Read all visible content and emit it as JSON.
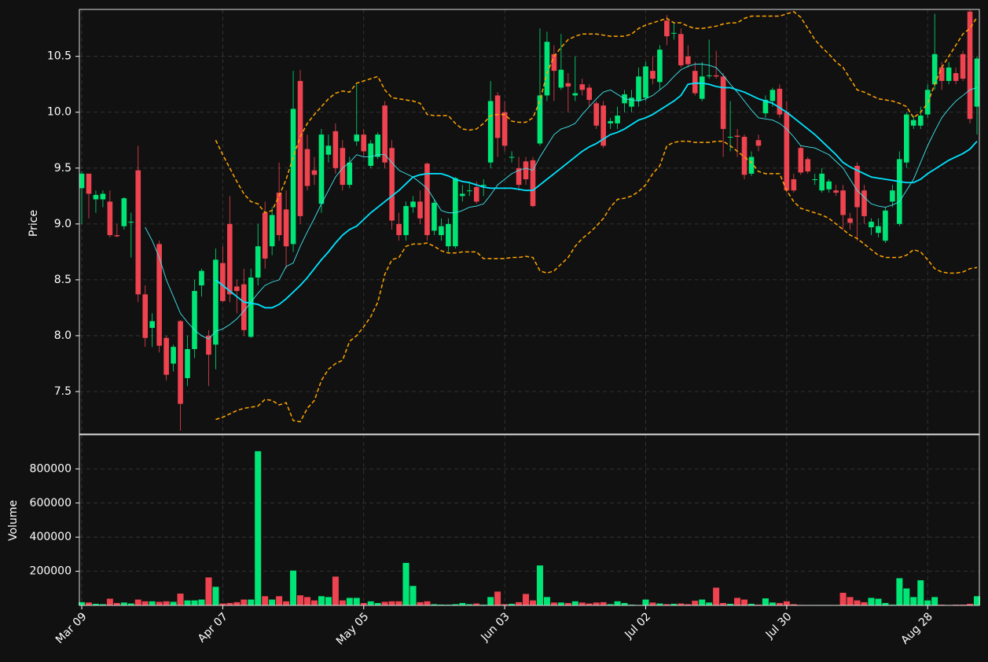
{
  "chart_data": {
    "type": "candlestick",
    "y_label": "Price",
    "volume_label": "Volume",
    "up_color": "#00e676",
    "down_color": "#ef4350",
    "grid": true,
    "ylim": [
      7.12,
      10.92
    ],
    "yticks": [
      7.5,
      {
        "value": 8,
        "label": "8.0"
      },
      8.5,
      {
        "value": 9,
        "label": "9.0"
      },
      9.5,
      {
        "value": 10,
        "label": "10.0"
      },
      10.5
    ],
    "volume_ylim": [
      0,
      1000000
    ],
    "volume_yticks": [
      200000,
      400000,
      600000,
      800000
    ],
    "categories": [
      "Mar 09",
      null,
      null,
      null,
      null,
      null,
      null,
      null,
      null,
      null,
      null,
      null,
      null,
      null,
      null,
      null,
      null,
      null,
      null,
      null,
      "Apr 07",
      null,
      null,
      null,
      null,
      null,
      null,
      null,
      null,
      null,
      null,
      null,
      null,
      null,
      null,
      null,
      null,
      null,
      null,
      null,
      "May 05",
      null,
      null,
      null,
      null,
      null,
      null,
      null,
      null,
      null,
      null,
      null,
      null,
      null,
      null,
      null,
      null,
      null,
      null,
      null,
      "Jun 03",
      null,
      null,
      null,
      null,
      null,
      null,
      null,
      null,
      null,
      null,
      null,
      null,
      null,
      null,
      null,
      null,
      null,
      null,
      null,
      "Jul 02",
      null,
      null,
      null,
      null,
      null,
      null,
      null,
      null,
      null,
      null,
      null,
      null,
      null,
      null,
      null,
      null,
      null,
      null,
      null,
      "Jul 30",
      null,
      null,
      null,
      null,
      null,
      null,
      null,
      null,
      null,
      null,
      null,
      null,
      null,
      null,
      null,
      null,
      null,
      null,
      null,
      "Aug 28",
      null,
      null,
      null,
      null,
      null,
      null,
      null
    ],
    "open": [
      9.32,
      9.45,
      9.22,
      9.22,
      9.2,
      8.9,
      8.98,
      9.02,
      9.48,
      8.37,
      8.07,
      8.82,
      7.98,
      7.75,
      8.13,
      7.62,
      7.88,
      8.45,
      8.0,
      7.92,
      8.65,
      9.0,
      8.44,
      8.46,
      7.99,
      8.52,
      9.1,
      8.8,
      9.28,
      9.13,
      8.82,
      10.28,
      9.67,
      9.48,
      9.18,
      9.62,
      9.83,
      9.68,
      9.35,
      9.74,
      9.8,
      9.52,
      9.6,
      10.06,
      9.68,
      9.0,
      8.9,
      9.15,
      9.2,
      9.54,
      8.94,
      8.9,
      8.8,
      8.8,
      9.25,
      9.3,
      9.33,
      9.34,
      9.55,
      10.15,
      10.0,
      9.6,
      9.5,
      9.56,
      9.57,
      9.72,
      10.15,
      10.52,
      10.22,
      10.26,
      10.15,
      10.25,
      10.22,
      10.08,
      10.06,
      9.9,
      9.9,
      10.08,
      10.05,
      10.1,
      10.13,
      10.37,
      10.27,
      10.82,
      10.71,
      10.7,
      10.5,
      10.37,
      10.12,
      10.33,
      10.33,
      10.32,
      9.78,
      9.79,
      9.78,
      9.45,
      9.75,
      9.99,
      10.1,
      10.21,
      10.0,
      9.4,
      9.68,
      9.58,
      9.4,
      9.3,
      9.31,
      9.3,
      9.3,
      9.05,
      9.52,
      9.3,
      8.97,
      8.92,
      8.85,
      9.2,
      9.0,
      9.55,
      9.88,
      9.88,
      9.98,
      10.25,
      10.4,
      10.28,
      10.35,
      10.52,
      10.9,
      10.05
    ],
    "high": [
      9.47,
      9.45,
      9.3,
      9.3,
      9.3,
      9.0,
      9.24,
      9.1,
      9.7,
      8.45,
      8.2,
      8.85,
      8.0,
      7.92,
      8.14,
      8.0,
      8.5,
      8.6,
      8.05,
      8.78,
      8.8,
      9.25,
      8.5,
      8.6,
      8.6,
      9.0,
      9.2,
      9.15,
      9.55,
      9.3,
      10.37,
      10.38,
      9.8,
      9.6,
      9.85,
      9.8,
      9.9,
      9.75,
      9.6,
      10.25,
      9.85,
      9.75,
      9.82,
      10.1,
      9.75,
      9.1,
      9.2,
      9.25,
      9.3,
      9.55,
      9.22,
      9.05,
      9.05,
      9.42,
      9.35,
      9.38,
      9.38,
      9.4,
      10.28,
      10.18,
      10.1,
      9.65,
      9.6,
      9.6,
      9.6,
      10.75,
      10.72,
      10.6,
      10.7,
      10.35,
      10.5,
      10.3,
      10.25,
      10.1,
      10.1,
      9.95,
      10.05,
      10.2,
      10.2,
      10.4,
      10.45,
      10.5,
      10.6,
      10.87,
      10.8,
      10.75,
      10.6,
      10.45,
      10.45,
      10.65,
      10.55,
      10.35,
      10.1,
      9.85,
      9.8,
      9.65,
      9.8,
      10.15,
      10.22,
      10.25,
      10.1,
      9.45,
      9.7,
      9.6,
      9.45,
      9.5,
      9.4,
      9.35,
      9.35,
      9.1,
      9.55,
      9.35,
      9.05,
      9.05,
      9.15,
      9.35,
      9.65,
      10.0,
      9.97,
      10.05,
      10.25,
      10.88,
      10.45,
      10.45,
      10.4,
      10.55,
      10.92,
      10.5
    ],
    "low": [
      9.0,
      9.05,
      9.1,
      9.15,
      8.88,
      8.88,
      8.95,
      8.7,
      8.3,
      7.9,
      7.9,
      7.85,
      7.6,
      7.68,
      7.15,
      7.55,
      7.8,
      8.35,
      7.55,
      7.7,
      8.3,
      8.3,
      8.2,
      8.0,
      7.98,
      8.45,
      8.6,
      8.72,
      8.85,
      8.6,
      8.75,
      9.0,
      9.3,
      9.35,
      9.1,
      9.55,
      9.45,
      9.3,
      9.32,
      9.7,
      9.6,
      9.5,
      9.58,
      9.5,
      8.95,
      8.85,
      8.85,
      9.1,
      9.0,
      8.85,
      8.9,
      8.85,
      8.75,
      8.78,
      9.2,
      9.25,
      9.18,
      9.25,
      9.5,
      9.6,
      9.65,
      9.55,
      9.3,
      9.35,
      9.15,
      9.7,
      10.1,
      10.1,
      10.2,
      10.0,
      10.1,
      10.15,
      10.05,
      9.85,
      9.68,
      9.85,
      9.85,
      10.0,
      10.0,
      10.05,
      10.1,
      10.25,
      10.2,
      10.6,
      10.65,
      10.4,
      10.4,
      10.15,
      10.1,
      10.3,
      10.3,
      9.6,
      9.65,
      9.6,
      9.4,
      9.43,
      9.65,
      9.95,
      10.05,
      9.95,
      9.28,
      9.28,
      9.44,
      9.45,
      9.35,
      9.28,
      9.28,
      9.25,
      8.95,
      8.95,
      8.85,
      9.0,
      8.9,
      8.88,
      8.83,
      9.15,
      8.98,
      9.5,
      9.85,
      9.85,
      9.95,
      10.2,
      10.2,
      10.25,
      10.25,
      10.28,
      9.9,
      9.8
    ],
    "close": [
      9.45,
      9.27,
      9.26,
      9.27,
      8.9,
      8.89,
      9.23,
      9.02,
      8.37,
      7.98,
      8.13,
      7.91,
      7.65,
      7.9,
      7.39,
      7.88,
      8.4,
      8.58,
      7.83,
      8.68,
      8.31,
      8.37,
      8.4,
      8.05,
      8.52,
      8.8,
      8.69,
      9.08,
      8.9,
      8.8,
      10.03,
      9.07,
      9.34,
      9.44,
      9.8,
      9.7,
      9.5,
      9.35,
      9.55,
      9.8,
      9.65,
      9.72,
      9.8,
      9.55,
      9.03,
      8.9,
      9.16,
      9.2,
      9.05,
      8.9,
      9.19,
      8.98,
      9.0,
      9.41,
      9.27,
      9.3,
      9.2,
      9.35,
      10.1,
      9.77,
      9.7,
      9.6,
      9.35,
      9.4,
      9.16,
      10.15,
      10.63,
      10.37,
      10.38,
      10.23,
      10.17,
      10.2,
      10.11,
      9.88,
      9.7,
      9.92,
      9.97,
      10.16,
      10.13,
      10.32,
      10.41,
      10.3,
      10.56,
      10.68,
      10.71,
      10.42,
      10.43,
      10.17,
      10.32,
      10.33,
      10.32,
      9.85,
      9.78,
      9.78,
      9.44,
      9.6,
      9.7,
      10.11,
      10.2,
      9.98,
      9.3,
      9.3,
      9.46,
      9.47,
      9.4,
      9.45,
      9.38,
      9.28,
      9.08,
      9.01,
      9.15,
      9.07,
      9.02,
      8.98,
      9.12,
      9.3,
      9.58,
      9.98,
      9.93,
      9.97,
      10.2,
      10.52,
      10.28,
      10.4,
      10.28,
      10.3,
      9.94,
      10.48
    ],
    "volume": [
      20000,
      18000,
      10000,
      8000,
      40000,
      15000,
      18000,
      12000,
      35000,
      25000,
      25000,
      22000,
      25000,
      22000,
      70000,
      30000,
      30000,
      35000,
      165000,
      110000,
      12000,
      15000,
      20000,
      35000,
      35000,
      905000,
      55000,
      35000,
      55000,
      25000,
      205000,
      60000,
      50000,
      30000,
      55000,
      50000,
      170000,
      30000,
      45000,
      45000,
      15000,
      25000,
      15000,
      22000,
      25000,
      25000,
      250000,
      115000,
      20000,
      25000,
      8000,
      6000,
      5000,
      8000,
      15000,
      8000,
      12000,
      5000,
      50000,
      82000,
      8000,
      10000,
      20000,
      68000,
      30000,
      235000,
      50000,
      18000,
      18000,
      15000,
      25000,
      18000,
      12000,
      18000,
      20000,
      8000,
      25000,
      15000,
      5000,
      3000,
      35000,
      18000,
      12000,
      8000,
      10000,
      12000,
      8000,
      28000,
      35000,
      18000,
      105000,
      15000,
      10000,
      45000,
      35000,
      10000,
      5000,
      42000,
      18000,
      15000,
      25000,
      8000,
      4000,
      3000,
      3000,
      3000,
      3000,
      3000,
      75000,
      50000,
      30000,
      20000,
      45000,
      40000,
      15000,
      5000,
      160000,
      100000,
      50000,
      148000,
      30000,
      50000,
      5000,
      3000,
      5000,
      5000,
      10000,
      55000
    ],
    "overlays": [
      {
        "color": "#ffa500",
        "width": 1.5,
        "dash": true,
        "values": [
          null,
          null,
          null,
          null,
          null,
          null,
          null,
          null,
          null,
          null,
          null,
          null,
          null,
          null,
          null,
          null,
          null,
          null,
          null,
          9.75,
          9.62,
          9.5,
          9.38,
          9.27,
          9.2,
          9.18,
          9.1,
          9.12,
          9.25,
          9.4,
          9.6,
          9.78,
          9.9,
          9.98,
          10.05,
          10.12,
          10.17,
          10.19,
          10.18,
          10.26,
          10.28,
          10.3,
          10.32,
          10.2,
          10.13,
          10.12,
          10.11,
          10.1,
          10.08,
          9.98,
          9.97,
          9.97,
          9.97,
          9.9,
          9.85,
          9.84,
          9.85,
          9.9,
          9.97,
          9.98,
          9.98,
          9.92,
          9.91,
          9.91,
          9.95,
          10.1,
          10.35,
          10.5,
          10.58,
          10.65,
          10.68,
          10.7,
          10.7,
          10.7,
          10.69,
          10.68,
          10.68,
          10.68,
          10.7,
          10.75,
          10.78,
          10.8,
          10.82,
          10.84,
          10.8,
          10.8,
          10.77,
          10.75,
          10.75,
          10.76,
          10.77,
          10.79,
          10.8,
          10.8,
          10.84,
          10.86,
          10.86,
          10.86,
          10.86,
          10.86,
          10.88,
          10.9,
          10.85,
          10.75,
          10.65,
          10.58,
          10.52,
          10.45,
          10.4,
          10.3,
          10.2,
          10.18,
          10.15,
          10.12,
          10.11,
          10.1,
          10.08,
          10.05,
          9.95,
          10.0,
          10.08,
          10.25,
          10.4,
          10.5,
          10.6,
          10.7,
          10.75,
          10.85
        ]
      },
      {
        "color": "#ffa500",
        "width": 1.5,
        "dash": true,
        "values": [
          null,
          null,
          null,
          null,
          null,
          null,
          null,
          null,
          null,
          null,
          null,
          null,
          null,
          null,
          null,
          null,
          null,
          null,
          null,
          7.25,
          7.27,
          7.3,
          7.33,
          7.35,
          7.36,
          7.37,
          7.43,
          7.42,
          7.38,
          7.4,
          7.24,
          7.23,
          7.35,
          7.42,
          7.6,
          7.7,
          7.75,
          7.78,
          7.95,
          8.0,
          8.08,
          8.17,
          8.3,
          8.55,
          8.68,
          8.7,
          8.8,
          8.82,
          8.82,
          8.83,
          8.8,
          8.76,
          8.74,
          8.74,
          8.75,
          8.75,
          8.75,
          8.69,
          8.69,
          8.69,
          8.69,
          8.7,
          8.7,
          8.71,
          8.7,
          8.58,
          8.56,
          8.58,
          8.64,
          8.7,
          8.8,
          8.87,
          8.92,
          8.98,
          9.05,
          9.15,
          9.22,
          9.23,
          9.25,
          9.29,
          9.35,
          9.45,
          9.52,
          9.7,
          9.73,
          9.74,
          9.74,
          9.73,
          9.73,
          9.73,
          9.74,
          9.74,
          9.7,
          9.65,
          9.6,
          9.55,
          9.47,
          9.45,
          9.45,
          9.45,
          9.3,
          9.2,
          9.14,
          9.12,
          9.1,
          9.08,
          9.05,
          9.0,
          8.95,
          8.9,
          8.87,
          8.82,
          8.77,
          8.72,
          8.7,
          8.7,
          8.7,
          8.72,
          8.77,
          8.75,
          8.68,
          8.6,
          8.57,
          8.56,
          8.56,
          8.57,
          8.6,
          8.61
        ]
      },
      {
        "color": "#3ee8f0",
        "width": 0.9,
        "dash": false,
        "values": [
          null,
          null,
          null,
          null,
          null,
          null,
          null,
          null,
          null,
          8.97,
          8.85,
          8.7,
          8.5,
          8.35,
          8.2,
          8.12,
          8.05,
          8.0,
          7.97,
          8.04,
          8.06,
          8.1,
          8.15,
          8.22,
          8.3,
          8.38,
          8.45,
          8.48,
          8.5,
          8.62,
          8.65,
          8.8,
          8.93,
          9.05,
          9.18,
          9.3,
          9.42,
          9.5,
          9.55,
          9.62,
          9.6,
          9.6,
          9.62,
          9.62,
          9.55,
          9.48,
          9.45,
          9.42,
          9.37,
          9.32,
          9.22,
          9.12,
          9.1,
          9.1,
          9.12,
          9.15,
          9.16,
          9.18,
          9.26,
          9.35,
          9.4,
          9.45,
          9.48,
          9.5,
          9.48,
          9.6,
          9.7,
          9.8,
          9.85,
          9.87,
          9.9,
          9.98,
          10.05,
          10.12,
          10.18,
          10.2,
          10.16,
          10.12,
          10.11,
          10.1,
          10.12,
          10.15,
          10.2,
          10.25,
          10.32,
          10.38,
          10.41,
          10.43,
          10.43,
          10.42,
          10.4,
          10.33,
          10.25,
          10.18,
          10.1,
          10.02,
          9.95,
          9.94,
          9.93,
          9.9,
          9.85,
          9.78,
          9.7,
          9.69,
          9.68,
          9.65,
          9.62,
          9.56,
          9.5,
          9.4,
          9.3,
          9.24,
          9.18,
          9.16,
          9.15,
          9.17,
          9.2,
          9.3,
          9.4,
          9.55,
          9.7,
          9.83,
          9.95,
          10.03,
          10.1,
          10.15,
          10.2,
          10.22
        ]
      },
      {
        "color": "#00e5ff",
        "width": 1.8,
        "dash": false,
        "values": [
          null,
          null,
          null,
          null,
          null,
          null,
          null,
          null,
          null,
          null,
          null,
          null,
          null,
          null,
          null,
          null,
          null,
          null,
          null,
          8.5,
          8.45,
          8.4,
          8.35,
          8.3,
          8.29,
          8.28,
          8.25,
          8.25,
          8.28,
          8.33,
          8.39,
          8.45,
          8.52,
          8.6,
          8.68,
          8.75,
          8.83,
          8.9,
          8.95,
          8.98,
          9.04,
          9.1,
          9.15,
          9.2,
          9.25,
          9.3,
          9.36,
          9.42,
          9.44,
          9.45,
          9.45,
          9.45,
          9.43,
          9.4,
          9.38,
          9.37,
          9.35,
          9.33,
          9.32,
          9.32,
          9.32,
          9.32,
          9.31,
          9.3,
          9.3,
          9.35,
          9.4,
          9.45,
          9.5,
          9.55,
          9.6,
          9.65,
          9.69,
          9.72,
          9.76,
          9.8,
          9.82,
          9.85,
          9.89,
          9.93,
          9.95,
          9.98,
          10.02,
          10.06,
          10.1,
          10.15,
          10.25,
          10.26,
          10.26,
          10.25,
          10.23,
          10.22,
          10.22,
          10.2,
          10.18,
          10.15,
          10.12,
          10.1,
          10.08,
          10.04,
          10.0,
          9.95,
          9.9,
          9.85,
          9.8,
          9.74,
          9.68,
          9.62,
          9.55,
          9.51,
          9.48,
          9.45,
          9.42,
          9.41,
          9.4,
          9.39,
          9.38,
          9.37,
          9.37,
          9.4,
          9.45,
          9.49,
          9.53,
          9.57,
          9.6,
          9.63,
          9.67,
          9.74
        ]
      }
    ]
  }
}
